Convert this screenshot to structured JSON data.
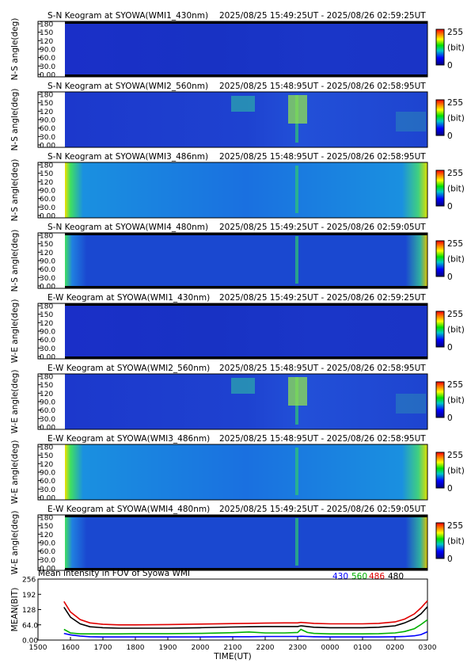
{
  "keograms": [
    {
      "title": "S-N Keogram at SYOWA(WMI1_430nm)",
      "time_range": "2025/08/25 15:49:25UT - 2025/08/26 02:59:25UT",
      "ylabel": "N-S angle(deg)",
      "ticks": [
        "180",
        "150",
        "120",
        "90.0",
        "60.0",
        "30.0",
        "0.00"
      ],
      "scale": "255",
      "unit": "(bit)",
      "scale_min": "0",
      "style": "dark"
    },
    {
      "title": "S-N Keogram at SYOWA(WMI2_560nm)",
      "time_range": "2025/08/25 15:48:95UT - 2025/08/26 02:58:95UT",
      "ylabel": "N-S angle(deg)",
      "ticks": [
        "180",
        "150",
        "120",
        "90.0",
        "60.0",
        "30.0",
        "0.00"
      ],
      "scale": "255",
      "unit": "(bit)",
      "scale_min": "0",
      "style": "green"
    },
    {
      "title": "S-N Keogram at SYOWA(WMI3_486nm)",
      "time_range": "2025/08/25 15:48:95UT - 2025/08/26 02:58:95UT",
      "ylabel": "N-S angle(deg)",
      "ticks": [
        "180",
        "150",
        "120",
        "90.0",
        "60.0",
        "30.0",
        "0.00"
      ],
      "scale": "255",
      "unit": "(bit)",
      "scale_min": "0",
      "style": "bright"
    },
    {
      "title": "S-N Keogram at SYOWA(WMI4_480nm)",
      "time_range": "2025/08/25 15:49:25UT - 2025/08/26 02:59:05UT",
      "ylabel": "N-S angle(deg)",
      "ticks": [
        "180",
        "150",
        "120",
        "90.0",
        "60.0",
        "30.0",
        "0.00"
      ],
      "scale": "255",
      "unit": "(bit)",
      "scale_min": "0",
      "style": "medium"
    },
    {
      "title": "E-W Keogram at SYOWA(WMI1_430nm)",
      "time_range": "2025/08/25 15:49:25UT - 2025/08/26 02:59:25UT",
      "ylabel": "W-E angle(deg)",
      "ticks": [
        "180",
        "150",
        "120",
        "90.0",
        "60.0",
        "30.0",
        "0.00"
      ],
      "scale": "255",
      "unit": "(bit)",
      "scale_min": "0",
      "style": "dark"
    },
    {
      "title": "E-W Keogram at SYOWA(WMI2_560nm)",
      "time_range": "2025/08/25 15:48:95UT - 2025/08/26 02:58:95UT",
      "ylabel": "W-E angle(deg)",
      "ticks": [
        "180",
        "150",
        "120",
        "90.0",
        "60.0",
        "30.0",
        "0.00"
      ],
      "scale": "255",
      "unit": "(bit)",
      "scale_min": "0",
      "style": "green"
    },
    {
      "title": "E-W Keogram at SYOWA(WMI3_486nm)",
      "time_range": "2025/08/25 15:48:95UT - 2025/08/26 02:58:95UT",
      "ylabel": "W-E angle(deg)",
      "ticks": [
        "180",
        "150",
        "120",
        "90.0",
        "60.0",
        "30.0",
        "0.00"
      ],
      "scale": "255",
      "unit": "(bit)",
      "scale_min": "0",
      "style": "bright"
    },
    {
      "title": "E-W Keogram at SYOWA(WMI4_480nm)",
      "time_range": "2025/08/25 15:49:25UT - 2025/08/26 02:59:05UT",
      "ylabel": "W-E angle(deg)",
      "ticks": [
        "180",
        "150",
        "120",
        "90.0",
        "60.0",
        "30.0",
        "0.00"
      ],
      "scale": "255",
      "unit": "(bit)",
      "scale_min": "0",
      "style": "medium"
    }
  ],
  "chart_data": {
    "type": "line",
    "title": "Mean intensity in FOV of Syowa WMI",
    "xlabel": "TIME(UT)",
    "ylabel": "MEAN(BIT)",
    "x_ticks": [
      "1500",
      "1600",
      "1700",
      "1800",
      "1900",
      "2000",
      "2100",
      "2200",
      "2300",
      "0000",
      "0100",
      "0200",
      "0300"
    ],
    "y_ticks": [
      "256",
      "192",
      "128",
      "64.0",
      "0.00"
    ],
    "ylim": [
      0,
      256
    ],
    "x": [
      15.8,
      16.0,
      16.3,
      16.6,
      17,
      17.5,
      18,
      19,
      20,
      21,
      21.5,
      22,
      22.6,
      23,
      23.1,
      23.3,
      23.5,
      24,
      25,
      25.5,
      26,
      26.3,
      26.6,
      26.8,
      27
    ],
    "series": [
      {
        "name": "430",
        "color": "#0000ff",
        "values": [
          28,
          22,
          17,
          14,
          13,
          13,
          13,
          13,
          13,
          14,
          14,
          15,
          15,
          15,
          16,
          15,
          14,
          13,
          13,
          13,
          14,
          15,
          18,
          23,
          35
        ]
      },
      {
        "name": "560",
        "color": "#00b000",
        "values": [
          45,
          30,
          26,
          26,
          26,
          26,
          27,
          27,
          28,
          31,
          34,
          30,
          30,
          32,
          45,
          32,
          28,
          26,
          26,
          27,
          30,
          36,
          48,
          65,
          85
        ]
      },
      {
        "name": "486",
        "color": "#e00000",
        "values": [
          162,
          118,
          86,
          72,
          66,
          64,
          64,
          65,
          67,
          69,
          70,
          71,
          72,
          72,
          74,
          72,
          70,
          68,
          68,
          70,
          76,
          88,
          110,
          135,
          165
        ]
      },
      {
        "name": "480",
        "color": "#000000",
        "values": [
          138,
          96,
          68,
          56,
          52,
          50,
          50,
          50,
          52,
          55,
          56,
          57,
          57,
          57,
          60,
          57,
          54,
          52,
          52,
          54,
          60,
          72,
          90,
          110,
          140
        ]
      }
    ]
  }
}
